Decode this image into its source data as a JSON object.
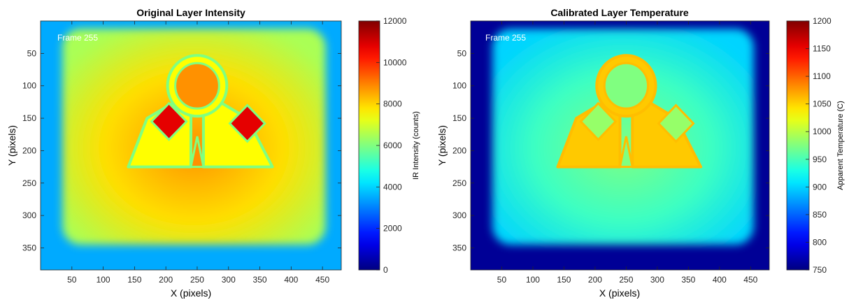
{
  "chart_data": [
    {
      "type": "heatmap",
      "title": "Original Layer Intensity",
      "xlabel": "X (pixels)",
      "ylabel": "Y (pixels)",
      "xlim": [
        0,
        480
      ],
      "ylim": [
        384,
        0
      ],
      "xticks": [
        50,
        100,
        150,
        200,
        250,
        300,
        350,
        400,
        450
      ],
      "yticks": [
        50,
        100,
        150,
        200,
        250,
        300,
        350
      ],
      "frame_label": "Frame 255",
      "colorbar": {
        "label": "IR Intensity (counts)",
        "min": 0,
        "max": 12000,
        "ticks": [
          0,
          2000,
          4000,
          6000,
          8000,
          10000,
          12000
        ],
        "colormap": "jet"
      },
      "regions": {
        "background": 3500,
        "plate_edge": 6500,
        "plate_center": 8800,
        "part_outline": 6000,
        "part_body": 7500,
        "hot_squares": 10800
      },
      "plate_bounds": {
        "x": [
          35,
          455
        ],
        "y": [
          12,
          345
        ]
      },
      "part_shape": {
        "ring_center": [
          250,
          100
        ],
        "ring_radius": 35,
        "arms": [
          {
            "top": [
              [
                170,
                150
              ],
              [
                240,
                110
              ]
            ],
            "bottom": [
              [
                140,
                225
              ],
              [
                240,
                225
              ]
            ]
          },
          {
            "top": [
              [
                260,
                110
              ],
              [
                330,
                150
              ]
            ],
            "bottom": [
              [
                260,
                225
              ],
              [
                370,
                225
              ]
            ]
          }
        ],
        "hot_squares": [
          {
            "center": [
              205,
              155
            ],
            "half_size": 28
          },
          {
            "center": [
              330,
              158
            ],
            "half_size": 28
          }
        ]
      }
    },
    {
      "type": "heatmap",
      "title": "Calibrated Layer Temperature",
      "xlabel": "X (pixels)",
      "ylabel": "Y (pixels)",
      "xlim": [
        0,
        480
      ],
      "ylim": [
        384,
        0
      ],
      "xticks": [
        50,
        100,
        150,
        200,
        250,
        300,
        350,
        400,
        450
      ],
      "yticks": [
        50,
        100,
        150,
        200,
        250,
        300,
        350
      ],
      "frame_label": "Frame 255",
      "colorbar": {
        "label": "Apparent Temperature (C)",
        "min": 750,
        "max": 1200,
        "ticks": [
          750,
          800,
          850,
          900,
          950,
          1000,
          1050,
          1100,
          1150,
          1200
        ],
        "colormap": "jet"
      },
      "regions": {
        "background": 760,
        "plate_edge": 900,
        "plate_center": 975,
        "part_outline": 1060,
        "part_body": 1055,
        "hot_squares": 985
      },
      "plate_bounds": {
        "x": [
          35,
          455
        ],
        "y": [
          12,
          345
        ]
      },
      "part_shape": {
        "ring_center": [
          250,
          100
        ],
        "ring_radius": 35,
        "arms": [
          {
            "top": [
              [
                170,
                150
              ],
              [
                240,
                110
              ]
            ],
            "bottom": [
              [
                140,
                225
              ],
              [
                240,
                225
              ]
            ]
          },
          {
            "top": [
              [
                260,
                110
              ],
              [
                330,
                150
              ]
            ],
            "bottom": [
              [
                260,
                225
              ],
              [
                370,
                225
              ]
            ]
          }
        ],
        "hot_squares": [
          {
            "center": [
              205,
              155
            ],
            "half_size": 28
          },
          {
            "center": [
              330,
              158
            ],
            "half_size": 28
          }
        ]
      }
    }
  ]
}
